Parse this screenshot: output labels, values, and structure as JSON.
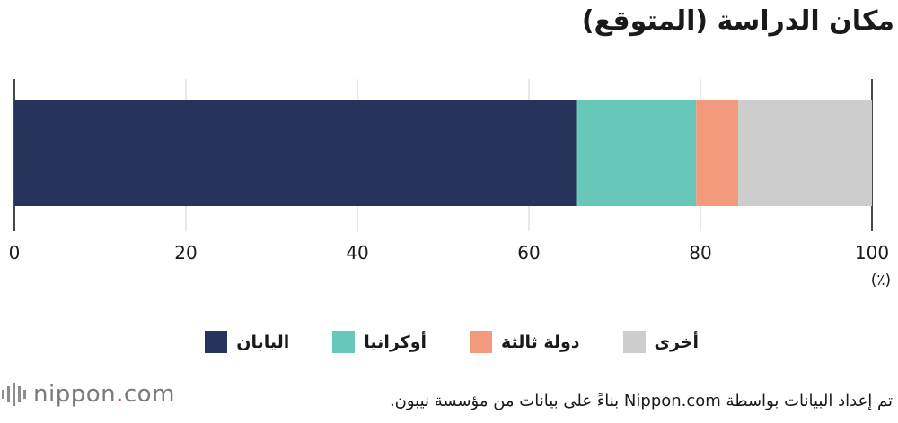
{
  "title": "مكان الدراسة (المتوقع)",
  "chart_data": {
    "type": "bar",
    "orientation": "horizontal-stacked",
    "title": "مكان الدراسة (المتوقع)",
    "xlabel": "(٪)",
    "xlim": [
      0,
      100
    ],
    "xticks": [
      "0",
      "20",
      "40",
      "60",
      "80",
      "100"
    ],
    "grid": true,
    "legend_position": "bottom",
    "series": [
      {
        "name": "اليابان",
        "value": 65.5,
        "color": "#26335a"
      },
      {
        "name": "أوكرانيا",
        "value": 14.0,
        "color": "#67c8b9"
      },
      {
        "name": "دولة ثالثة",
        "value": 4.9,
        "color": "#f29a7b"
      },
      {
        "name": "أخرى",
        "value": 15.6,
        "color": "#cdcdcd"
      }
    ]
  },
  "legend": [
    {
      "label": "اليابان",
      "color": "#26335a"
    },
    {
      "label": "أوكرانيا",
      "color": "#67c8b9"
    },
    {
      "label": "دولة ثالثة",
      "color": "#f29a7b"
    },
    {
      "label": "أخرى",
      "color": "#cdcdcd"
    }
  ],
  "source": "تم إعداد البيانات بواسطة Nippon.com بناءً على بيانات من مؤسسة نيبون.",
  "logo": {
    "brand": "nippon",
    "dot": ".",
    "suffix": "com",
    "icon": "sound-bars-icon"
  }
}
